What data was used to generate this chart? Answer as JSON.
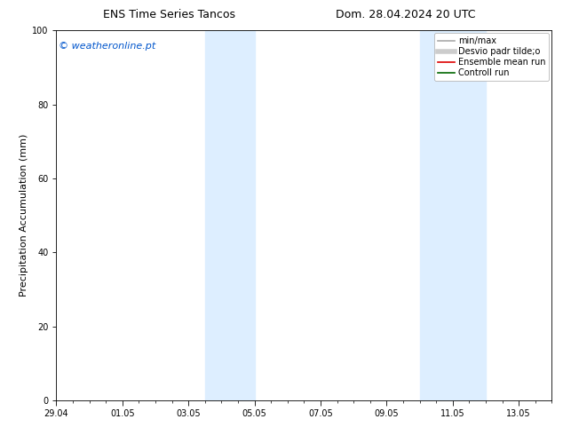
{
  "title_left": "ENS Time Series Tancos",
  "title_right": "Dom. 28.04.2024 20 UTC",
  "ylabel": "Precipitation Accumulation (mm)",
  "watermark": "© weatheronline.pt",
  "watermark_color": "#0055cc",
  "ylim": [
    0,
    100
  ],
  "yticks": [
    0,
    20,
    40,
    60,
    80,
    100
  ],
  "xlim": [
    0,
    15
  ],
  "x_tick_labels": [
    "29.04",
    "01.05",
    "03.05",
    "05.05",
    "07.05",
    "09.05",
    "11.05",
    "13.05"
  ],
  "x_tick_positions": [
    0,
    2,
    4,
    6,
    8,
    10,
    12,
    14
  ],
  "shaded_bands": [
    {
      "x_start": 4.5,
      "x_end": 6.0
    },
    {
      "x_start": 11.0,
      "x_end": 13.0
    }
  ],
  "shaded_color": "#ddeeff",
  "legend_entries": [
    {
      "label": "min/max",
      "color": "#aaaaaa",
      "lw": 1.2
    },
    {
      "label": "Desvio padr tilde;o",
      "color": "#cccccc",
      "lw": 4
    },
    {
      "label": "Ensemble mean run",
      "color": "#dd0000",
      "lw": 1.2
    },
    {
      "label": "Controll run",
      "color": "#006600",
      "lw": 1.2
    }
  ],
  "bg_color": "#ffffff",
  "axes_bg_color": "#ffffff",
  "title_fontsize": 9,
  "tick_fontsize": 7,
  "ylabel_fontsize": 8,
  "watermark_fontsize": 8,
  "legend_fontsize": 7
}
